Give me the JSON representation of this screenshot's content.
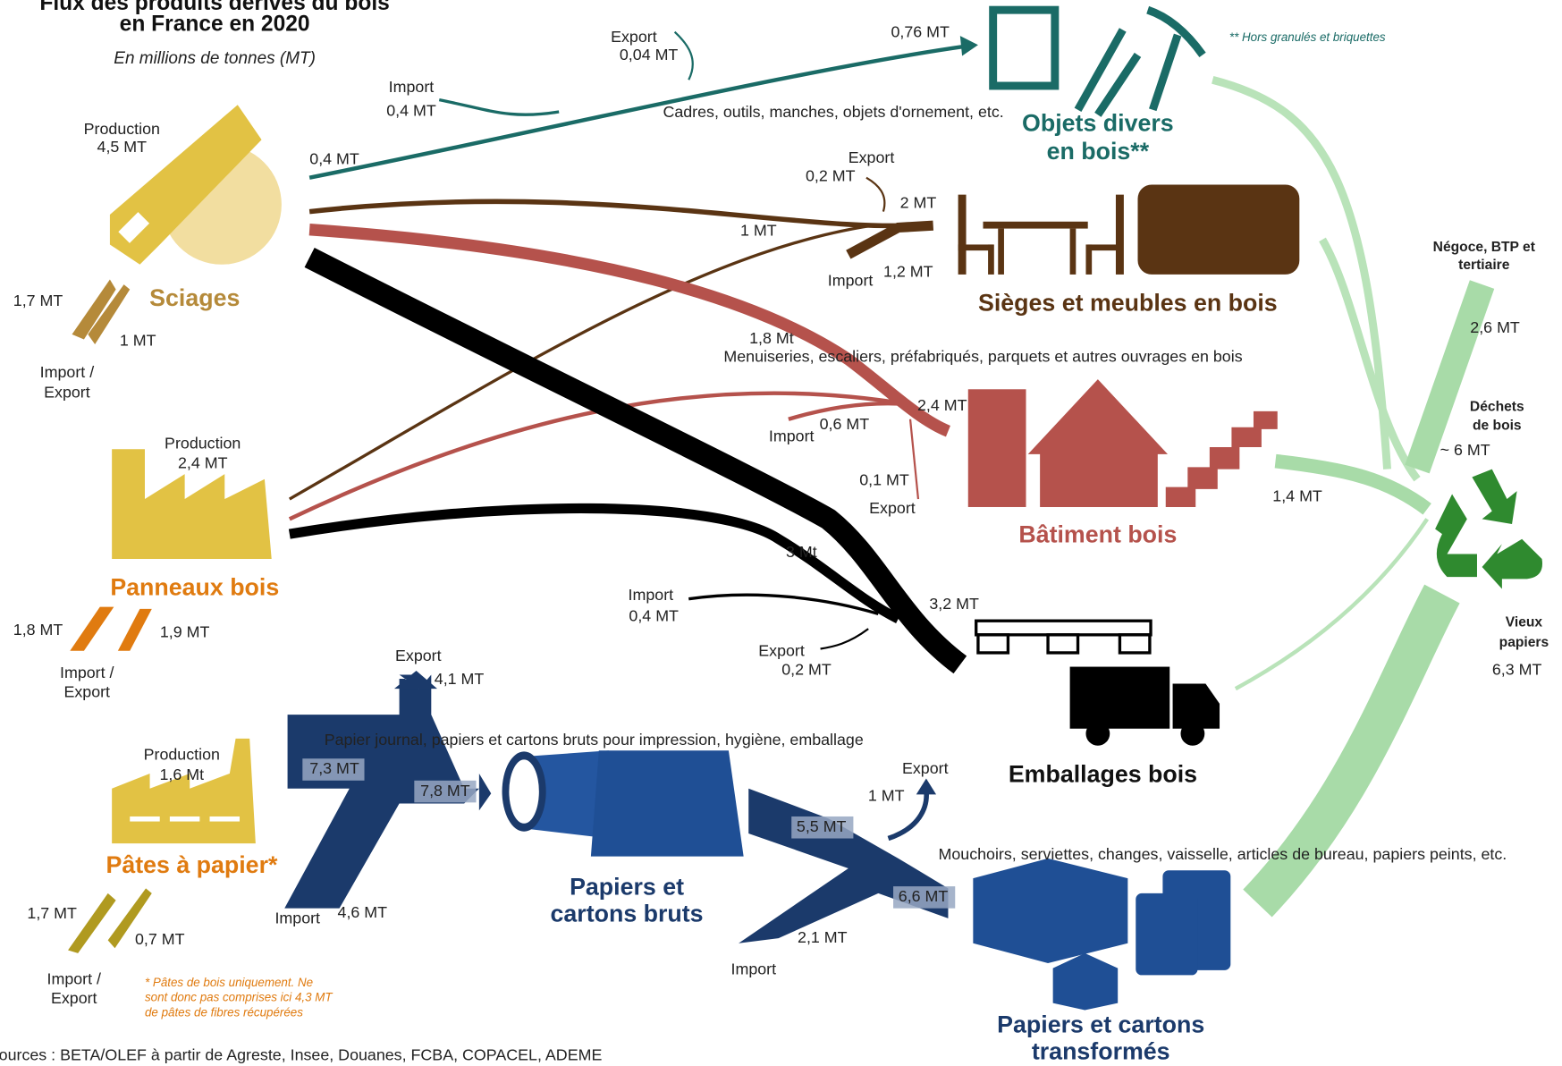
{
  "header": {
    "title_line1": "Flux des produits dérivés du bois",
    "title_line2": "en France en 2020",
    "subtitle": "En millions de tonnes (MT)"
  },
  "sciages": {
    "name": "Sciages",
    "production": "Production",
    "production_mt": "4,5 MT",
    "import_mt": "1,7 MT",
    "export_mt": "1 MT",
    "trade": [
      "Import /",
      "Export"
    ]
  },
  "panneaux": {
    "name": "Panneaux bois",
    "production": "Production",
    "production_mt": "2,4 MT",
    "import_mt": "1,8 MT",
    "export_mt": "1,9 MT",
    "trade": [
      "Import /",
      "Export"
    ]
  },
  "pates": {
    "name": "Pâtes à papier*",
    "production": "Production",
    "production_mt": "1,6 Mt",
    "import_mt": "1,7 MT",
    "export_mt": "0,7 MT",
    "trade": [
      "Import /",
      "Export"
    ],
    "note": [
      "* Pâtes de bois uniquement. Ne",
      "sont donc pas comprises ici 4,3 MT",
      "de pâtes de fibres récupérées"
    ]
  },
  "objets": {
    "name": [
      "Objets divers",
      "en bois**"
    ],
    "desc": "Cadres, outils, manches, objets d'ornement, etc.",
    "note": "** Hors granulés et briquettes",
    "flows": [
      "0,4 MT",
      "Import",
      "0,4 MT",
      "Export",
      "0,04 MT",
      "0,76 MT"
    ]
  },
  "sieges": {
    "name": "Sièges et meubles en bois",
    "flows": [
      "Export",
      "0,2 MT",
      "2 MT",
      "1 MT",
      "Import",
      "1,2 MT"
    ]
  },
  "batiment": {
    "name": "Bâtiment bois",
    "desc": "Menuiseries, escaliers, préfabriqués, parquets et autres ouvrages en bois",
    "flows": [
      "1,8 Mt",
      "2,4 MT",
      "Import",
      "0,6 MT",
      "0,1 MT",
      "Export"
    ]
  },
  "emballages": {
    "name": "Emballages bois",
    "flows": [
      "3 Mt",
      "Import",
      "0,4 MT",
      "3,2 MT",
      "Export",
      "0,2 MT"
    ]
  },
  "papiers_bruts": {
    "name": [
      "Papiers et",
      "cartons bruts"
    ],
    "desc": "Papier journal, papiers et cartons bruts pour impression, hygiène, emballage",
    "flows": [
      "Export",
      "4,1 MT",
      "7,3 MT",
      "7,8 MT",
      "Import",
      "4,6 MT"
    ]
  },
  "papiers_transformes": {
    "name": [
      "Papiers et cartons",
      "transformés"
    ],
    "desc": "Mouchoirs, serviettes, changes, vaisselle, articles de bureau, papiers peints, etc.",
    "flows": [
      "Export",
      "1 MT",
      "5,5 MT",
      "6,6 MT",
      "2,1 MT",
      "Import"
    ]
  },
  "recyclage": {
    "negoce": [
      "Négoce, BTP et",
      "tertiaire"
    ],
    "negoce_mt": "2,6 MT",
    "dechets": [
      "Déchets",
      "de bois"
    ],
    "dechets_mt": "~ 6 MT",
    "batiment_mt": "1,4 MT",
    "vieux": [
      "Vieux",
      "papiers"
    ],
    "vieux_mt": "6,3 MT"
  },
  "footer": {
    "source": "Sources : BETA/OLEF à partir de Agreste, Insee, Douanes, FCBA, COPACEL, ADEME"
  }
}
